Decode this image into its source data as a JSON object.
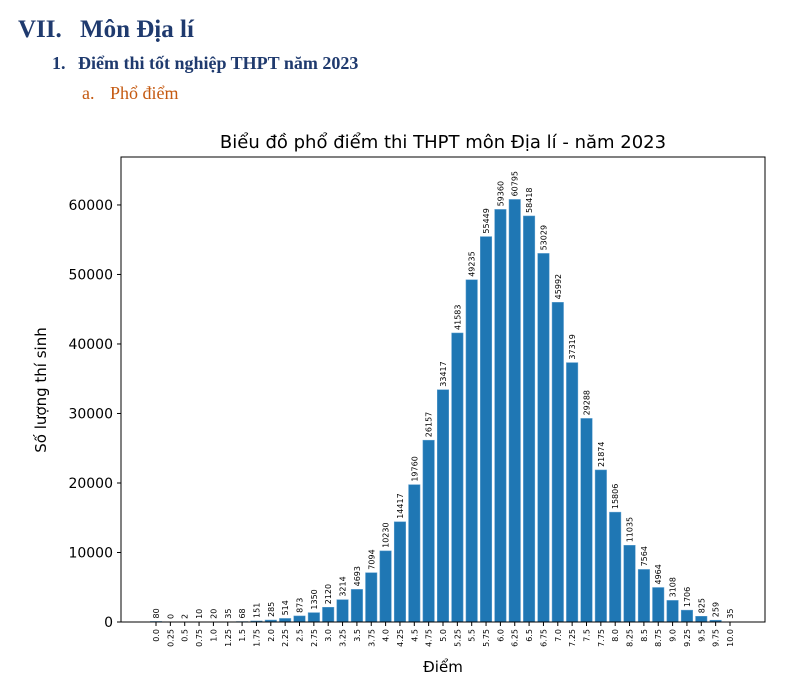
{
  "headings": {
    "section_num": "VII.",
    "section_title": "Môn Địa lí",
    "sub_num": "1.",
    "sub_title": "Điểm thi tốt nghiệp THPT năm 2023",
    "subsub_num": "a.",
    "subsub_title": "Phổ điểm"
  },
  "chart_data": {
    "type": "bar",
    "title": "Biểu đồ phổ điểm thi THPT môn Địa lí - năm 2023",
    "xlabel": "Điểm",
    "ylabel": "Số lượng thí sinh",
    "categories": [
      "0.0",
      "0.25",
      "0.5",
      "0.75",
      "1.0",
      "1.25",
      "1.5",
      "1.75",
      "2.0",
      "2.25",
      "2.5",
      "2.75",
      "3.0",
      "3.25",
      "3.5",
      "3.75",
      "4.0",
      "4.25",
      "4.5",
      "4.75",
      "5.0",
      "5.25",
      "5.5",
      "5.75",
      "6.0",
      "6.25",
      "6.5",
      "6.75",
      "7.0",
      "7.25",
      "7.5",
      "7.75",
      "8.0",
      "8.25",
      "8.5",
      "8.75",
      "9.0",
      "9.25",
      "9.5",
      "9.75",
      "10.0"
    ],
    "values": [
      80,
      0,
      2,
      10,
      20,
      35,
      68,
      151,
      285,
      514,
      873,
      1350,
      2120,
      3214,
      4693,
      7094,
      10230,
      14417,
      19760,
      26157,
      33417,
      41583,
      49235,
      55449,
      59360,
      60795,
      58418,
      53029,
      45992,
      37319,
      29288,
      21874,
      15806,
      11035,
      7564,
      4964,
      3108,
      1706,
      825,
      259,
      35
    ],
    "yticks": [
      0,
      10000,
      20000,
      30000,
      40000,
      50000,
      60000
    ],
    "ylim": [
      0,
      66900
    ],
    "grid": false,
    "color": "#1f77b4"
  }
}
